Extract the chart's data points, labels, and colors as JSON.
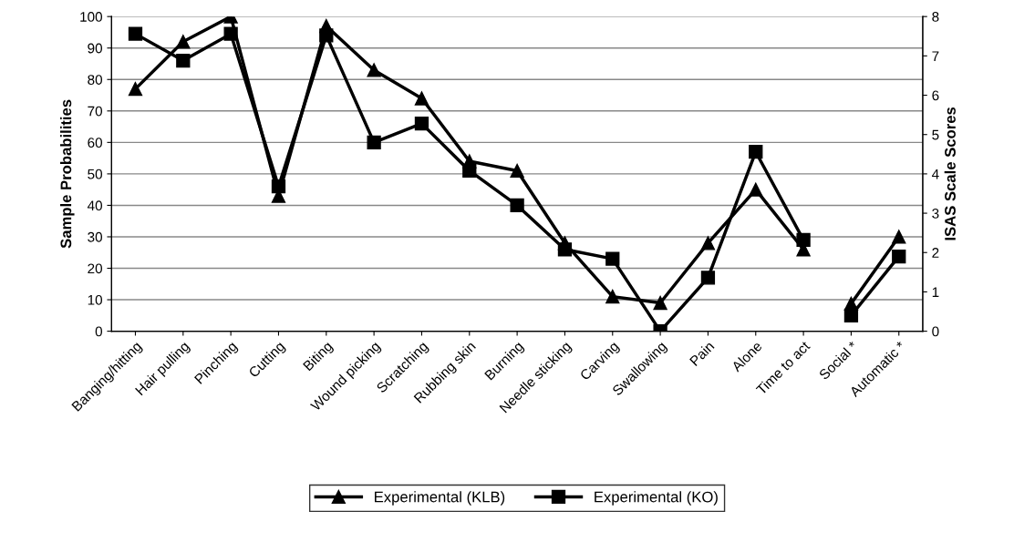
{
  "chart_data": {
    "type": "line",
    "ylabel": "Sample Probabilities",
    "y2label": "ISAS Scale Scores",
    "categories": [
      "Banging/hitting",
      "Hair pulling",
      "Pinching",
      "Cutting",
      "Biting",
      "Wound picking",
      "Scratching",
      "Rubbing skin",
      "Burning",
      "Needle sticking",
      "Carving",
      "Swallowing",
      "Pain",
      "Alone",
      "Time to act",
      "Social *",
      "Automatic *"
    ],
    "series": [
      {
        "name": "Experimental (KLB)",
        "color": "#000000",
        "marker": "triangle",
        "values": [
          77,
          92,
          100,
          43,
          97,
          83,
          74,
          54,
          51,
          28,
          11,
          9,
          28,
          45,
          26,
          null,
          null
        ]
      },
      {
        "name": "Experimental (KO)",
        "color": "#000000",
        "marker": "square",
        "values": [
          94.5,
          86,
          94.5,
          46,
          94,
          60,
          66,
          51,
          40,
          26,
          23,
          0,
          17,
          57,
          29,
          null,
          null
        ]
      },
      {
        "color": "#000000",
        "marker": "triangle",
        "axis": "y2",
        "values": [
          null,
          null,
          null,
          null,
          null,
          null,
          null,
          null,
          null,
          null,
          null,
          null,
          null,
          null,
          null,
          0.7,
          2.4
        ]
      },
      {
        "color": "#000000",
        "marker": "square",
        "axis": "y2",
        "values": [
          null,
          null,
          null,
          null,
          null,
          null,
          null,
          null,
          null,
          null,
          null,
          null,
          null,
          null,
          null,
          0.4,
          1.9
        ]
      }
    ],
    "ylim": [
      0,
      100
    ],
    "yticks": [
      0,
      10,
      20,
      30,
      40,
      50,
      60,
      70,
      80,
      90,
      100
    ],
    "y2lim": [
      0,
      8
    ],
    "y2ticks": [
      0,
      1,
      2,
      3,
      4,
      5,
      6,
      7,
      8
    ],
    "grid": "y",
    "legend": "bottom",
    "line_style": "solid"
  }
}
